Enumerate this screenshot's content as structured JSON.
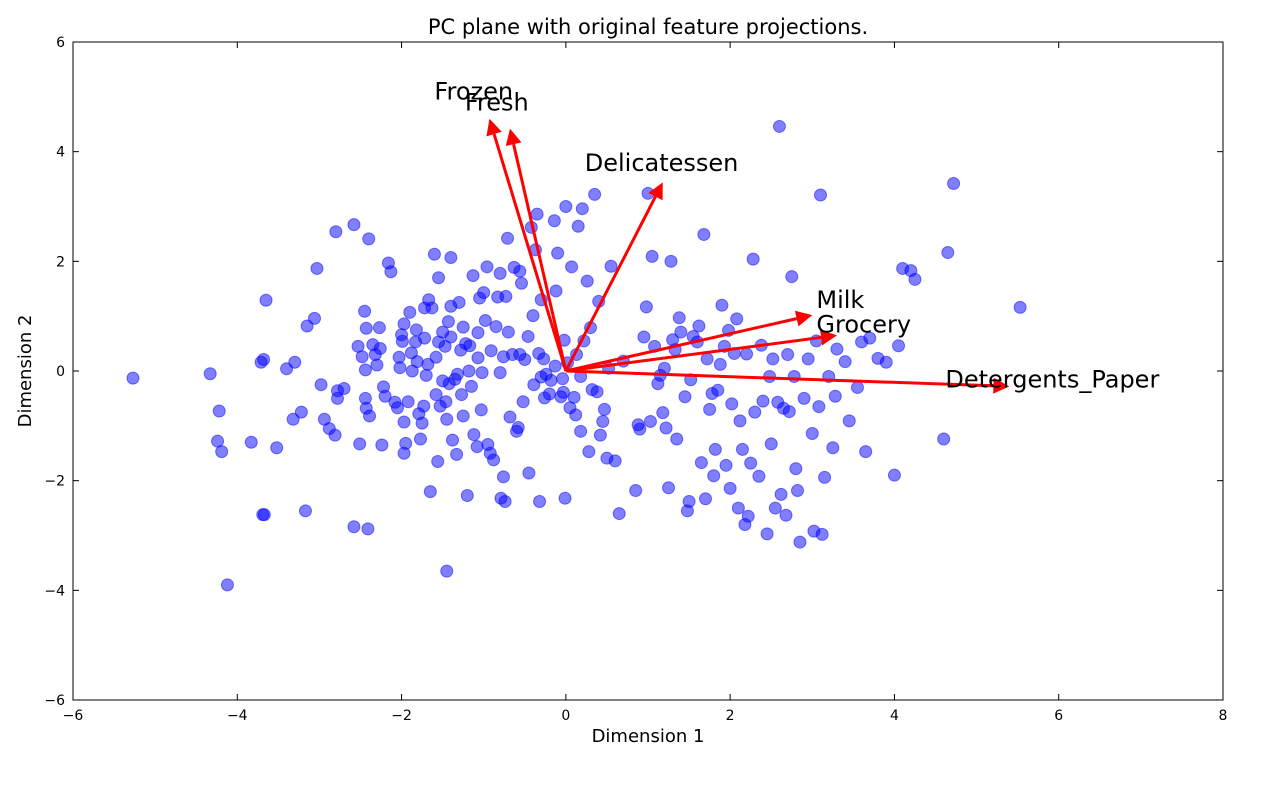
{
  "chart_data": {
    "type": "scatter",
    "title": "PC plane with original feature projections.",
    "xlabel": "Dimension 1",
    "ylabel": "Dimension 2",
    "xlim": [
      -6,
      8
    ],
    "ylim": [
      -6,
      6
    ],
    "xticks": [
      -6,
      -4,
      -2,
      0,
      2,
      4,
      6,
      8
    ],
    "yticks": [
      -6,
      -4,
      -2,
      0,
      2,
      4,
      6
    ],
    "grid": false,
    "point_color": "#0000ff",
    "arrow_color": "#ff0000",
    "arrows": [
      {
        "label": "Frozen",
        "x": -0.93,
        "y": 4.6,
        "label_x": -1.6,
        "label_y": 4.95
      },
      {
        "label": "Fresh",
        "x": -0.68,
        "y": 4.42,
        "label_x": -1.23,
        "label_y": 4.75
      },
      {
        "label": "Delicatessen",
        "x": 1.18,
        "y": 3.44,
        "label_x": 0.23,
        "label_y": 3.65
      },
      {
        "label": "Milk",
        "x": 3.0,
        "y": 1.02,
        "label_x": 3.05,
        "label_y": 1.15
      },
      {
        "label": "Grocery",
        "x": 3.3,
        "y": 0.65,
        "label_x": 3.05,
        "label_y": 0.7
      },
      {
        "label": "Detergents_Paper",
        "x": 5.4,
        "y": -0.28,
        "label_x": 4.62,
        "label_y": -0.3
      }
    ],
    "points": [
      [
        -5.27,
        -0.13
      ],
      [
        -4.33,
        -0.05
      ],
      [
        -4.22,
        -0.73
      ],
      [
        -4.24,
        -1.28
      ],
      [
        -4.19,
        -1.47
      ],
      [
        -4.12,
        -3.9
      ],
      [
        -3.83,
        -1.3
      ],
      [
        -3.71,
        0.16
      ],
      [
        -3.68,
        0.21
      ],
      [
        -3.65,
        1.29
      ],
      [
        -3.69,
        -2.62
      ],
      [
        -3.52,
        -1.4
      ],
      [
        -3.4,
        0.04
      ],
      [
        -3.32,
        -0.88
      ],
      [
        -3.3,
        0.16
      ],
      [
        -3.22,
        -0.75
      ],
      [
        -3.17,
        -2.55
      ],
      [
        -3.15,
        0.82
      ],
      [
        -3.06,
        0.96
      ],
      [
        -3.03,
        1.87
      ],
      [
        -2.98,
        -0.25
      ],
      [
        -2.94,
        -0.88
      ],
      [
        -2.88,
        -1.05
      ],
      [
        -2.81,
        -1.17
      ],
      [
        -2.8,
        2.54
      ],
      [
        -2.78,
        -0.36
      ],
      [
        -2.78,
        -0.5
      ],
      [
        -2.7,
        -0.32
      ],
      [
        -2.58,
        2.67
      ],
      [
        -2.53,
        0.45
      ],
      [
        -2.51,
        -1.33
      ],
      [
        -2.48,
        0.26
      ],
      [
        -2.45,
        1.09
      ],
      [
        -2.44,
        0.02
      ],
      [
        -2.44,
        -0.5
      ],
      [
        -2.43,
        0.78
      ],
      [
        -2.43,
        -0.68
      ],
      [
        -2.39,
        -0.82
      ],
      [
        -2.4,
        2.41
      ],
      [
        -2.35,
        0.48
      ],
      [
        -2.32,
        0.3
      ],
      [
        -2.3,
        0.11
      ],
      [
        -2.26,
        0.41
      ],
      [
        -2.27,
        0.79
      ],
      [
        -2.24,
        -1.35
      ],
      [
        -2.22,
        -0.29
      ],
      [
        -2.2,
        -0.46
      ],
      [
        -2.16,
        1.97
      ],
      [
        -2.13,
        1.81
      ],
      [
        -2.08,
        -0.57
      ],
      [
        -2.05,
        -0.67
      ],
      [
        -2.03,
        0.25
      ],
      [
        -2.02,
        0.06
      ],
      [
        -2.0,
        0.66
      ],
      [
        -1.99,
        0.54
      ],
      [
        -1.97,
        0.86
      ],
      [
        -1.97,
        -0.93
      ],
      [
        -1.95,
        -1.32
      ],
      [
        -1.97,
        -1.5
      ],
      [
        -1.92,
        -0.56
      ],
      [
        -1.9,
        1.07
      ],
      [
        -1.88,
        0.33
      ],
      [
        -1.87,
        0.0
      ],
      [
        -1.83,
        0.53
      ],
      [
        -1.82,
        0.75
      ],
      [
        -1.81,
        0.17
      ],
      [
        -1.79,
        -0.78
      ],
      [
        -1.77,
        -1.24
      ],
      [
        -1.75,
        -0.95
      ],
      [
        -1.73,
        -0.64
      ],
      [
        -1.72,
        0.6
      ],
      [
        -1.72,
        1.15
      ],
      [
        -1.7,
        -0.08
      ],
      [
        -1.68,
        0.12
      ],
      [
        -1.67,
        1.3
      ],
      [
        -1.65,
        -2.2
      ],
      [
        -1.63,
        1.15
      ],
      [
        -1.6,
        2.13
      ],
      [
        -1.58,
        0.25
      ],
      [
        -1.58,
        -0.43
      ],
      [
        -1.56,
        -1.65
      ],
      [
        -1.55,
        0.53
      ],
      [
        -1.55,
        1.7
      ],
      [
        -1.53,
        -0.64
      ],
      [
        -1.5,
        -0.18
      ],
      [
        -1.5,
        0.71
      ],
      [
        -1.47,
        0.45
      ],
      [
        -1.46,
        -0.56
      ],
      [
        -1.45,
        -0.88
      ],
      [
        -1.43,
        0.9
      ],
      [
        -1.42,
        -0.23
      ],
      [
        -1.4,
        2.07
      ],
      [
        -1.4,
        0.62
      ],
      [
        -1.4,
        1.18
      ],
      [
        -1.38,
        -1.26
      ],
      [
        -1.35,
        -0.15
      ],
      [
        -1.33,
        -1.52
      ],
      [
        -1.32,
        -0.06
      ],
      [
        -1.3,
        1.25
      ],
      [
        -1.28,
        0.38
      ],
      [
        -1.27,
        -0.43
      ],
      [
        -1.25,
        0.8
      ],
      [
        -1.25,
        -0.82
      ],
      [
        -1.22,
        0.5
      ],
      [
        -1.2,
        -2.27
      ],
      [
        -1.18,
        0.0
      ],
      [
        -1.17,
        0.46
      ],
      [
        -1.15,
        -0.28
      ],
      [
        -1.13,
        1.74
      ],
      [
        -1.12,
        -1.16
      ],
      [
        -1.08,
        -1.38
      ],
      [
        -1.07,
        0.7
      ],
      [
        -1.07,
        0.24
      ],
      [
        -1.05,
        1.33
      ],
      [
        -1.03,
        -0.71
      ],
      [
        -1.02,
        -0.03
      ],
      [
        -1.0,
        1.43
      ],
      [
        -0.98,
        0.92
      ],
      [
        -0.96,
        1.9
      ],
      [
        -0.95,
        -1.34
      ],
      [
        -0.92,
        -1.5
      ],
      [
        -0.91,
        0.37
      ],
      [
        -0.88,
        -1.62
      ],
      [
        -0.85,
        0.81
      ],
      [
        -0.83,
        1.35
      ],
      [
        -0.8,
        1.78
      ],
      [
        -0.8,
        -0.03
      ],
      [
        -0.79,
        -2.32
      ],
      [
        -0.76,
        0.26
      ],
      [
        -0.76,
        -1.93
      ],
      [
        -0.74,
        -2.38
      ],
      [
        -0.73,
        1.36
      ],
      [
        -0.71,
        2.42
      ],
      [
        -0.7,
        0.71
      ],
      [
        -0.68,
        -0.84
      ],
      [
        -0.65,
        0.3
      ],
      [
        -0.63,
        1.89
      ],
      [
        -0.6,
        -1.1
      ],
      [
        -0.58,
        -1.03
      ],
      [
        -0.56,
        1.82
      ],
      [
        -0.54,
        1.6
      ],
      [
        -0.52,
        -0.56
      ],
      [
        -0.5,
        0.21
      ],
      [
        -0.46,
        0.63
      ],
      [
        -0.45,
        -1.86
      ],
      [
        -0.42,
        2.62
      ],
      [
        -0.4,
        1.01
      ],
      [
        -0.39,
        -0.25
      ],
      [
        -0.37,
        2.21
      ],
      [
        -0.35,
        2.86
      ],
      [
        -0.33,
        0.32
      ],
      [
        -0.32,
        -2.38
      ],
      [
        -0.3,
        -0.11
      ],
      [
        -0.27,
        0.22
      ],
      [
        -0.26,
        -0.49
      ],
      [
        -0.24,
        -0.06
      ],
      [
        -0.2,
        -0.42
      ],
      [
        -0.18,
        -0.17
      ],
      [
        -0.14,
        2.74
      ],
      [
        -0.13,
        0.09
      ],
      [
        -0.12,
        1.46
      ],
      [
        -0.1,
        2.15
      ],
      [
        -0.06,
        -0.47
      ],
      [
        -0.04,
        -0.14
      ],
      [
        -0.03,
        -0.39
      ],
      [
        -0.02,
        0.56
      ],
      [
        -0.01,
        -2.32
      ],
      [
        0.0,
        3.0
      ],
      [
        0.02,
        0.15
      ],
      [
        0.05,
        -0.67
      ],
      [
        0.07,
        1.9
      ],
      [
        0.1,
        -0.48
      ],
      [
        0.12,
        -0.8
      ],
      [
        0.13,
        0.3
      ],
      [
        0.15,
        2.64
      ],
      [
        0.18,
        -1.1
      ],
      [
        0.2,
        2.96
      ],
      [
        0.22,
        0.55
      ],
      [
        0.26,
        1.64
      ],
      [
        0.28,
        -1.47
      ],
      [
        0.3,
        0.79
      ],
      [
        0.32,
        -0.34
      ],
      [
        0.35,
        3.22
      ],
      [
        0.38,
        -0.38
      ],
      [
        0.4,
        1.27
      ],
      [
        0.42,
        -1.17
      ],
      [
        0.45,
        -0.92
      ],
      [
        0.47,
        -0.7
      ],
      [
        0.5,
        -1.59
      ],
      [
        0.52,
        0.05
      ],
      [
        0.55,
        1.91
      ],
      [
        0.6,
        -1.64
      ],
      [
        0.65,
        -2.6
      ],
      [
        0.7,
        0.18
      ],
      [
        0.85,
        -2.18
      ],
      [
        0.88,
        -0.98
      ],
      [
        0.9,
        -1.06
      ],
      [
        0.95,
        0.62
      ],
      [
        0.98,
        1.17
      ],
      [
        1.0,
        3.24
      ],
      [
        1.03,
        -0.92
      ],
      [
        1.05,
        2.09
      ],
      [
        1.08,
        0.45
      ],
      [
        1.12,
        -0.23
      ],
      [
        1.15,
        -0.08
      ],
      [
        1.18,
        -0.76
      ],
      [
        1.2,
        0.05
      ],
      [
        1.22,
        -1.04
      ],
      [
        1.25,
        -2.13
      ],
      [
        1.28,
        2.0
      ],
      [
        1.3,
        0.57
      ],
      [
        1.33,
        0.39
      ],
      [
        1.35,
        -1.24
      ],
      [
        1.38,
        0.97
      ],
      [
        1.4,
        0.71
      ],
      [
        1.45,
        -0.47
      ],
      [
        1.48,
        -2.55
      ],
      [
        1.5,
        -2.38
      ],
      [
        1.52,
        -0.16
      ],
      [
        1.55,
        0.63
      ],
      [
        1.6,
        0.53
      ],
      [
        1.62,
        0.82
      ],
      [
        1.65,
        -1.67
      ],
      [
        1.68,
        2.49
      ],
      [
        1.7,
        -2.33
      ],
      [
        1.72,
        0.22
      ],
      [
        1.75,
        -0.7
      ],
      [
        1.78,
        -0.41
      ],
      [
        1.8,
        -1.91
      ],
      [
        1.82,
        -1.43
      ],
      [
        1.85,
        -0.35
      ],
      [
        1.88,
        0.12
      ],
      [
        1.9,
        1.2
      ],
      [
        1.93,
        0.45
      ],
      [
        1.95,
        -1.72
      ],
      [
        1.98,
        0.74
      ],
      [
        2.0,
        -2.14
      ],
      [
        2.02,
        -0.6
      ],
      [
        2.05,
        0.32
      ],
      [
        2.08,
        0.95
      ],
      [
        2.1,
        -2.5
      ],
      [
        2.12,
        -0.91
      ],
      [
        2.15,
        -1.43
      ],
      [
        2.18,
        -2.8
      ],
      [
        2.2,
        0.31
      ],
      [
        2.22,
        -2.65
      ],
      [
        2.25,
        -1.68
      ],
      [
        2.28,
        2.04
      ],
      [
        2.3,
        -0.75
      ],
      [
        2.35,
        -1.92
      ],
      [
        2.38,
        0.47
      ],
      [
        2.4,
        -0.55
      ],
      [
        2.45,
        -2.97
      ],
      [
        2.48,
        -0.1
      ],
      [
        2.5,
        -1.33
      ],
      [
        2.52,
        0.22
      ],
      [
        2.55,
        -2.5
      ],
      [
        2.58,
        -0.57
      ],
      [
        2.6,
        4.46
      ],
      [
        2.62,
        -2.25
      ],
      [
        2.65,
        -0.68
      ],
      [
        2.68,
        -2.63
      ],
      [
        2.7,
        0.3
      ],
      [
        2.72,
        -0.74
      ],
      [
        2.75,
        1.72
      ],
      [
        2.78,
        -0.1
      ],
      [
        2.8,
        -1.78
      ],
      [
        2.82,
        -2.18
      ],
      [
        2.85,
        -3.12
      ],
      [
        2.9,
        -0.5
      ],
      [
        2.95,
        0.22
      ],
      [
        3.0,
        -1.14
      ],
      [
        3.02,
        -2.92
      ],
      [
        3.05,
        0.55
      ],
      [
        3.08,
        -0.65
      ],
      [
        3.1,
        3.21
      ],
      [
        3.12,
        -2.98
      ],
      [
        3.15,
        -1.94
      ],
      [
        3.2,
        -0.1
      ],
      [
        3.25,
        -1.4
      ],
      [
        3.28,
        -0.46
      ],
      [
        3.3,
        0.4
      ],
      [
        3.4,
        0.17
      ],
      [
        3.45,
        -0.91
      ],
      [
        3.55,
        -0.3
      ],
      [
        3.6,
        0.53
      ],
      [
        3.65,
        -1.47
      ],
      [
        3.7,
        0.6
      ],
      [
        3.8,
        0.23
      ],
      [
        3.9,
        0.16
      ],
      [
        4.0,
        -1.9
      ],
      [
        4.05,
        0.46
      ],
      [
        4.1,
        1.87
      ],
      [
        4.2,
        1.83
      ],
      [
        4.25,
        1.67
      ],
      [
        4.6,
        -1.24
      ],
      [
        4.65,
        2.16
      ],
      [
        4.72,
        3.42
      ],
      [
        5.53,
        1.16
      ],
      [
        -1.45,
        -3.65
      ],
      [
        -2.58,
        -2.84
      ],
      [
        -2.41,
        -2.88
      ],
      [
        -3.67,
        -2.62
      ],
      [
        -0.56,
        0.3
      ],
      [
        0.18,
        -0.1
      ],
      [
        -0.3,
        1.3
      ]
    ]
  }
}
